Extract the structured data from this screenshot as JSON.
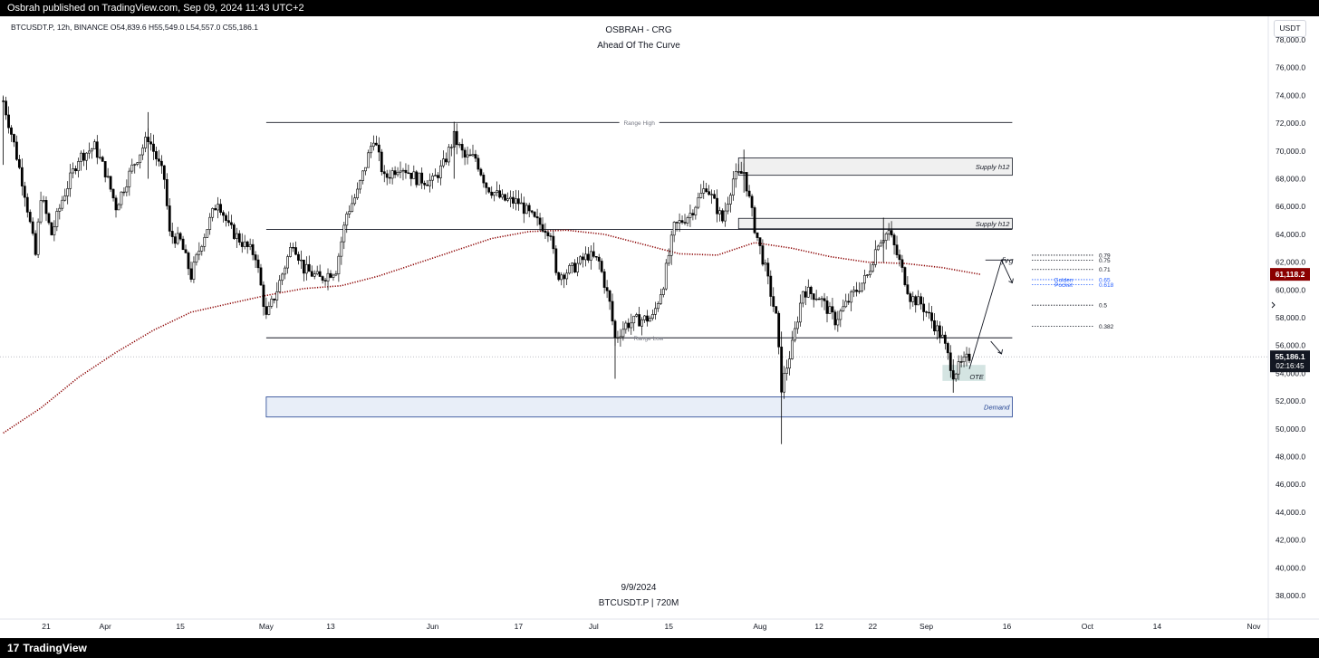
{
  "header": {
    "published_text": "Osbrah published on TradingView.com, Sep 09, 2024 11:43 UTC+2"
  },
  "footer": {
    "brand": "TradingView",
    "brand_mark": "17"
  },
  "chart_header": {
    "symbol_line": "BTCUSDT.P, 12h, BINANCE  O54,839.6  H55,549.0  L54,557.0  C55,186.1",
    "title": "OSBRAH - CRG",
    "subtitle": "Ahead Of The Curve",
    "currency_button": "USDT",
    "watermark_date": "9/9/2024",
    "watermark_symbol": "BTCUSDT.P | 720M"
  },
  "colors": {
    "candle": "#000000",
    "ma": "#8b0000",
    "demand_border": "#1e3f8f",
    "demand_fill": "#e8eef8",
    "supply_fill": "#f0f0f0",
    "ote_fill": "#d4e4e2",
    "price_badge_ma": "#8b0000",
    "price_badge_last": "#131722",
    "golden_pocket": "#2962ff"
  },
  "chart_data": {
    "type": "candlestick",
    "y_ticks": [
      "78,000.0",
      "76,000.0",
      "74,000.0",
      "72,000.0",
      "70,000.0",
      "68,000.0",
      "66,000.0",
      "64,000.0",
      "62,000.0",
      "60,000.0",
      "58,000.0",
      "56,000.0",
      "54,000.0",
      "52,000.0",
      "50,000.0",
      "48,000.0",
      "46,000.0",
      "44,000.0",
      "42,000.0",
      "40,000.0",
      "38,000.0"
    ],
    "ylim": [
      37000,
      79200
    ],
    "x_ticks": [
      {
        "label": "21",
        "date": "2024-03-21"
      },
      {
        "label": "Apr",
        "date": "2024-04-01"
      },
      {
        "label": "15",
        "date": "2024-04-15"
      },
      {
        "label": "May",
        "date": "2024-05-01"
      },
      {
        "label": "13",
        "date": "2024-05-13"
      },
      {
        "label": "Jun",
        "date": "2024-06-01"
      },
      {
        "label": "17",
        "date": "2024-06-17"
      },
      {
        "label": "Jul",
        "date": "2024-07-01"
      },
      {
        "label": "15",
        "date": "2024-07-15"
      },
      {
        "label": "Aug",
        "date": "2024-08-01"
      },
      {
        "label": "12",
        "date": "2024-08-12"
      },
      {
        "label": "22",
        "date": "2024-08-22"
      },
      {
        "label": "Sep",
        "date": "2024-09-01"
      },
      {
        "label": "16",
        "date": "2024-09-16"
      },
      {
        "label": "Oct",
        "date": "2024-10-01"
      },
      {
        "label": "14",
        "date": "2024-10-14"
      },
      {
        "label": "Nov",
        "date": "2024-11-01"
      }
    ],
    "price_path": [
      [
        "2024-03-13",
        73600
      ],
      [
        "2024-03-15",
        70500
      ],
      [
        "2024-03-17",
        67000
      ],
      [
        "2024-03-19",
        62500
      ],
      [
        "2024-03-20",
        66800
      ],
      [
        "2024-03-22",
        64000
      ],
      [
        "2024-03-24",
        66500
      ],
      [
        "2024-03-27",
        69500
      ],
      [
        "2024-03-30",
        70300
      ],
      [
        "2024-04-01",
        68500
      ],
      [
        "2024-04-03",
        66000
      ],
      [
        "2024-04-06",
        68800
      ],
      [
        "2024-04-09",
        71000
      ],
      [
        "2024-04-12",
        68000
      ],
      [
        "2024-04-13",
        64000
      ],
      [
        "2024-04-15",
        63500
      ],
      [
        "2024-04-17",
        61000
      ],
      [
        "2024-04-19",
        63500
      ],
      [
        "2024-04-22",
        66500
      ],
      [
        "2024-04-24",
        64500
      ],
      [
        "2024-04-27",
        63200
      ],
      [
        "2024-04-29",
        62500
      ],
      [
        "2024-05-01",
        58000
      ],
      [
        "2024-05-03",
        60000
      ],
      [
        "2024-05-06",
        63500
      ],
      [
        "2024-05-08",
        61500
      ],
      [
        "2024-05-11",
        60800
      ],
      [
        "2024-05-14",
        61500
      ],
      [
        "2024-05-16",
        65500
      ],
      [
        "2024-05-18",
        67000
      ],
      [
        "2024-05-21",
        71000
      ],
      [
        "2024-05-23",
        68000
      ],
      [
        "2024-05-26",
        69000
      ],
      [
        "2024-05-29",
        68000
      ],
      [
        "2024-06-01",
        67800
      ],
      [
        "2024-06-03",
        69000
      ],
      [
        "2024-06-05",
        71000
      ],
      [
        "2024-06-07",
        69500
      ],
      [
        "2024-06-09",
        69500
      ],
      [
        "2024-06-11",
        67500
      ],
      [
        "2024-06-14",
        66500
      ],
      [
        "2024-06-17",
        66300
      ],
      [
        "2024-06-20",
        65000
      ],
      [
        "2024-06-23",
        64200
      ],
      [
        "2024-06-24",
        61000
      ],
      [
        "2024-06-27",
        61500
      ],
      [
        "2024-06-30",
        62500
      ],
      [
        "2024-07-02",
        62000
      ],
      [
        "2024-07-04",
        59000
      ],
      [
        "2024-07-05",
        56500
      ],
      [
        "2024-07-07",
        57500
      ],
      [
        "2024-07-09",
        57800
      ],
      [
        "2024-07-12",
        58000
      ],
      [
        "2024-07-14",
        60500
      ],
      [
        "2024-07-16",
        64500
      ],
      [
        "2024-07-19",
        65500
      ],
      [
        "2024-07-22",
        67500
      ],
      [
        "2024-07-25",
        65000
      ],
      [
        "2024-07-27",
        68000
      ],
      [
        "2024-07-29",
        68500
      ],
      [
        "2024-07-31",
        64500
      ],
      [
        "2024-08-02",
        61500
      ],
      [
        "2024-08-04",
        58000
      ],
      [
        "2024-08-05",
        53000
      ],
      [
        "2024-08-07",
        56000
      ],
      [
        "2024-08-09",
        60000
      ],
      [
        "2024-08-12",
        59500
      ],
      [
        "2024-08-15",
        57800
      ],
      [
        "2024-08-18",
        59500
      ],
      [
        "2024-08-21",
        61000
      ],
      [
        "2024-08-23",
        63500
      ],
      [
        "2024-08-25",
        64200
      ],
      [
        "2024-08-27",
        62000
      ],
      [
        "2024-08-29",
        59500
      ],
      [
        "2024-08-31",
        59000
      ],
      [
        "2024-09-02",
        57800
      ],
      [
        "2024-09-04",
        56500
      ],
      [
        "2024-09-06",
        54000
      ],
      [
        "2024-09-08",
        54800
      ],
      [
        "2024-09-09",
        55186
      ]
    ],
    "moving_average": [
      [
        "2024-03-13",
        49700
      ],
      [
        "2024-03-20",
        51500
      ],
      [
        "2024-03-27",
        53700
      ],
      [
        "2024-04-03",
        55500
      ],
      [
        "2024-04-10",
        57100
      ],
      [
        "2024-04-17",
        58400
      ],
      [
        "2024-04-24",
        59000
      ],
      [
        "2024-05-01",
        59600
      ],
      [
        "2024-05-08",
        60100
      ],
      [
        "2024-05-15",
        60300
      ],
      [
        "2024-05-22",
        61000
      ],
      [
        "2024-05-29",
        61900
      ],
      [
        "2024-06-05",
        62800
      ],
      [
        "2024-06-12",
        63700
      ],
      [
        "2024-06-19",
        64200
      ],
      [
        "2024-06-26",
        64300
      ],
      [
        "2024-07-03",
        64000
      ],
      [
        "2024-07-10",
        63300
      ],
      [
        "2024-07-17",
        62600
      ],
      [
        "2024-07-24",
        62500
      ],
      [
        "2024-07-31",
        63400
      ],
      [
        "2024-08-07",
        63000
      ],
      [
        "2024-08-14",
        62400
      ],
      [
        "2024-08-21",
        62000
      ],
      [
        "2024-08-28",
        61900
      ],
      [
        "2024-09-04",
        61600
      ],
      [
        "2024-09-11",
        61118
      ]
    ],
    "range_high": {
      "label": "Range High",
      "price": 72050,
      "from": "2024-05-01",
      "to": "2024-09-17"
    },
    "range_low": {
      "label": "Range Low",
      "price": 56550,
      "from": "2024-05-01",
      "to": "2024-09-17"
    },
    "mid_level": {
      "price": 64350,
      "from": "2024-05-01",
      "to": "2024-09-17"
    },
    "zones": [
      {
        "label": "Supply h12",
        "top": 69500,
        "bottom": 68250,
        "from": "2024-07-28",
        "to": "2024-09-17",
        "kind": "supply"
      },
      {
        "label": "Supply h12",
        "top": 65150,
        "bottom": 64400,
        "from": "2024-07-28",
        "to": "2024-09-17",
        "kind": "supply"
      },
      {
        "label": "Demand",
        "top": 52300,
        "bottom": 50850,
        "from": "2024-05-01",
        "to": "2024-09-17",
        "kind": "demand"
      },
      {
        "label": "OTE",
        "top": 54600,
        "bottom": 53450,
        "from": "2024-09-04",
        "to": "2024-09-12",
        "kind": "ote"
      }
    ],
    "fvg": {
      "label": "fvg",
      "price": 62150,
      "from": "2024-09-12",
      "to": "2024-09-17"
    },
    "fib_levels": [
      {
        "label": "0.79",
        "price": 62500
      },
      {
        "label": "0.75",
        "price": 62130
      },
      {
        "label": "0.71",
        "price": 61470
      },
      {
        "label": "0.65",
        "price": 60740
      },
      {
        "label": "0.618",
        "price": 60370
      },
      {
        "label": "0.5",
        "price": 58900
      },
      {
        "label": "0.382",
        "price": 57380
      }
    ],
    "golden_pocket_labels": [
      "Golden",
      "Pocket"
    ],
    "projection": [
      [
        "2024-09-09",
        54300
      ],
      [
        "2024-09-15",
        62150
      ],
      [
        "2024-09-17",
        60500
      ]
    ],
    "projection_alt": [
      [
        "2024-09-13",
        56300
      ],
      [
        "2024-09-15",
        55400
      ]
    ],
    "last_price": "55,186.1",
    "countdown": "02:16:45",
    "ma_value": "61,118.2"
  }
}
